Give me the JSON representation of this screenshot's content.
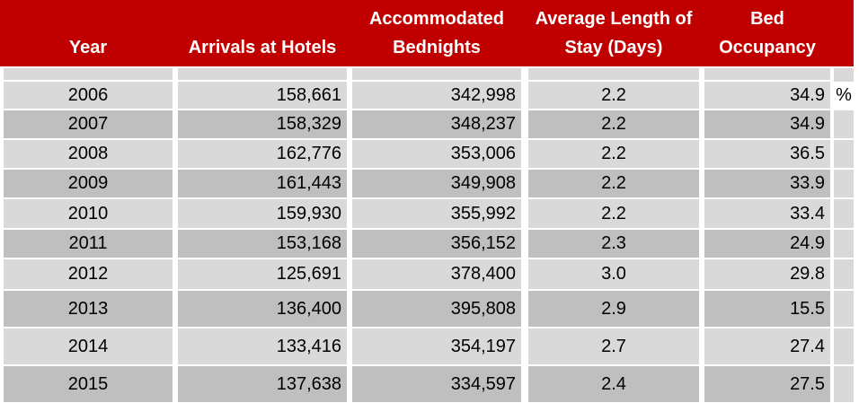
{
  "chart_data": {
    "type": "table",
    "columns": [
      "Year",
      "Arrivals at Hotels",
      "Accommodated Bednights",
      "Average Length of Stay (Days)",
      "Bed Occupancy"
    ],
    "header_lines": [
      [
        "Year"
      ],
      [
        "Arrivals at Hotels"
      ],
      [
        "Accommodated",
        "Bednights"
      ],
      [
        "Average Length of",
        "Stay (Days)"
      ],
      [
        "Bed",
        "Occupancy"
      ]
    ],
    "unit": "%",
    "rows": [
      [
        "2006",
        "158,661",
        "342,998",
        "2.2",
        "34.9"
      ],
      [
        "2007",
        "158,329",
        "348,237",
        "2.2",
        "34.9"
      ],
      [
        "2008",
        "162,776",
        "353,006",
        "2.2",
        "36.5"
      ],
      [
        "2009",
        "161,443",
        "349,908",
        "2.2",
        "33.9"
      ],
      [
        "2010",
        "159,930",
        "355,992",
        "2.2",
        "33.4"
      ],
      [
        "2011",
        "153,168",
        "356,152",
        "2.3",
        "24.9"
      ],
      [
        "2012",
        "125,691",
        "378,400",
        "3.0",
        "29.8"
      ],
      [
        "2013",
        "136,400",
        "395,808",
        "2.9",
        "15.5"
      ],
      [
        "2014",
        "133,416",
        "354,197",
        "2.7",
        "27.4"
      ],
      [
        "2015",
        "137,638",
        "334,597",
        "2.4",
        "27.5"
      ]
    ],
    "colors": {
      "header_bg": "#c00000",
      "header_text": "#ffffff",
      "row_light": "#d9d9d9",
      "row_dark": "#bfbfbf"
    }
  }
}
